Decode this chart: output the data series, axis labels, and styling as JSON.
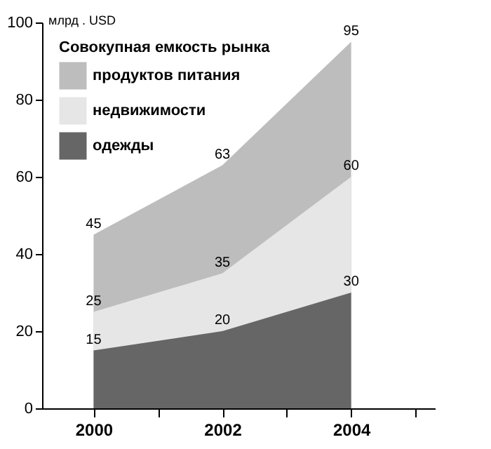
{
  "chart_data": {
    "type": "area",
    "ylabel": "млрд . USD",
    "legend_title": "Совокупная емкость рынка",
    "x": [
      2000,
      2002,
      2004
    ],
    "series": [
      {
        "name": "продуктов питания",
        "color": "#bdbdbd",
        "values": [
          45,
          63,
          95
        ]
      },
      {
        "name": "недвижимости",
        "color": "#e6e6e6",
        "values": [
          25,
          35,
          60
        ]
      },
      {
        "name": "одежды",
        "color": "#666666",
        "values": [
          15,
          20,
          30
        ]
      }
    ],
    "xlim": [
      1999.2,
      2005.3
    ],
    "xticks": [
      2000,
      {
        "value": 2001,
        "label": null
      },
      2002,
      {
        "value": 2003,
        "label": null
      },
      2004,
      {
        "value": 2005,
        "label": null
      }
    ],
    "ylim": [
      0,
      100
    ],
    "yticks": [
      0,
      20,
      40,
      60,
      80,
      100
    ],
    "grid": false,
    "legend": "top left",
    "data_labels": true
  }
}
